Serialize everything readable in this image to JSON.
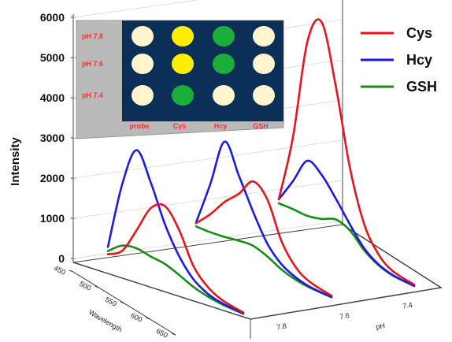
{
  "chart_data": {
    "type": "line",
    "subtype": "3d-waterfall",
    "ylabel": "Intensity",
    "ylim": [
      0,
      6000
    ],
    "yticks": [
      "6000",
      "5000",
      "4000",
      "3000",
      "2000",
      "1000",
      "0"
    ],
    "xlabel": "Wavelength",
    "x_ticks": [
      "450",
      "500",
      "550",
      "600",
      "650"
    ],
    "zlabel": "pH",
    "z_ticks": [
      "7.8",
      "7.6",
      "7.4"
    ],
    "grid": true,
    "legend_position": "top-right",
    "panels": [
      {
        "pH": 7.4,
        "series": [
          {
            "name": "Cys",
            "color": "#e8141c",
            "x": [
              460,
              480,
              500,
              520,
              540,
              560,
              580,
              600,
              620,
              650
            ],
            "values": [
              120,
              350,
              1000,
              1700,
              1900,
              1450,
              700,
              330,
              150,
              50
            ]
          },
          {
            "name": "Hcy",
            "color": "#1b1be6",
            "x": [
              460,
              480,
              500,
              520,
              540,
              560,
              580,
              600,
              620,
              650
            ],
            "values": [
              300,
              2000,
              3000,
              2350,
              1450,
              800,
              370,
              160,
              70,
              30
            ]
          },
          {
            "name": "GSH",
            "color": "#1a8c1a",
            "x": [
              460,
              480,
              500,
              520,
              540,
              560,
              580,
              600,
              620,
              650
            ],
            "values": [
              200,
              480,
              560,
              500,
              460,
              330,
              180,
              90,
              40,
              20
            ]
          }
        ]
      },
      {
        "pH": 7.6,
        "series": [
          {
            "name": "Cys",
            "color": "#e8141c",
            "x": [
              460,
              480,
              500,
              520,
              540,
              560,
              580,
              600,
              620,
              650
            ],
            "values": [
              480,
              850,
              1300,
              1650,
              2100,
              1800,
              900,
              400,
              180,
              60
            ]
          },
          {
            "name": "Hcy",
            "color": "#1b1be6",
            "x": [
              460,
              480,
              500,
              520,
              540,
              560,
              580,
              600,
              620,
              650
            ],
            "values": [
              500,
              1600,
              2800,
              2100,
              1350,
              700,
              330,
              150,
              60,
              25
            ]
          },
          {
            "name": "GSH",
            "color": "#1a8c1a",
            "x": [
              460,
              480,
              500,
              520,
              540,
              560,
              580,
              600,
              620,
              650
            ],
            "values": [
              400,
              400,
              430,
              480,
              500,
              380,
              200,
              90,
              40,
              20
            ]
          }
        ]
      },
      {
        "pH": 7.8,
        "series": [
          {
            "name": "Cys",
            "color": "#e8141c",
            "x": [
              460,
              480,
              500,
              520,
              540,
              560,
              580,
              600,
              620,
              650
            ],
            "values": [
              800,
              2500,
              5000,
              5650,
              4200,
              2300,
              1050,
              450,
              180,
              60
            ]
          },
          {
            "name": "Hcy",
            "color": "#1b1be6",
            "x": [
              460,
              480,
              500,
              520,
              540,
              560,
              580,
              600,
              620,
              650
            ],
            "values": [
              800,
              1400,
              2050,
              1850,
              1400,
              900,
              450,
              200,
              80,
              30
            ]
          },
          {
            "name": "GSH",
            "color": "#1a8c1a",
            "x": [
              460,
              480,
              500,
              520,
              540,
              560,
              580,
              600,
              620,
              650
            ],
            "values": [
              700,
              700,
              680,
              750,
              880,
              750,
              400,
              180,
              70,
              25
            ]
          }
        ]
      }
    ],
    "legend": [
      {
        "name": "Cys",
        "color": "#e8141c"
      },
      {
        "name": "Hcy",
        "color": "#1b1be6"
      },
      {
        "name": "GSH",
        "color": "#1a8c1a"
      }
    ],
    "inset": {
      "background": "#0b2f57",
      "frame_color": "#b9b9b9",
      "row_labels": [
        "pH 7.8",
        "pH 7.6",
        "pH 7.4"
      ],
      "col_labels": [
        "probe",
        "Cys",
        "Hcy",
        "GSH"
      ],
      "well_colors": [
        [
          "#fff6cf",
          "#ffee00",
          "#1cae3a",
          "#fff6cf"
        ],
        [
          "#fff6cf",
          "#ffee00",
          "#1cae3a",
          "#fff6cf"
        ],
        [
          "#fff6cf",
          "#1cae3a",
          "#fff6cf",
          "#fff6cf"
        ]
      ]
    }
  }
}
